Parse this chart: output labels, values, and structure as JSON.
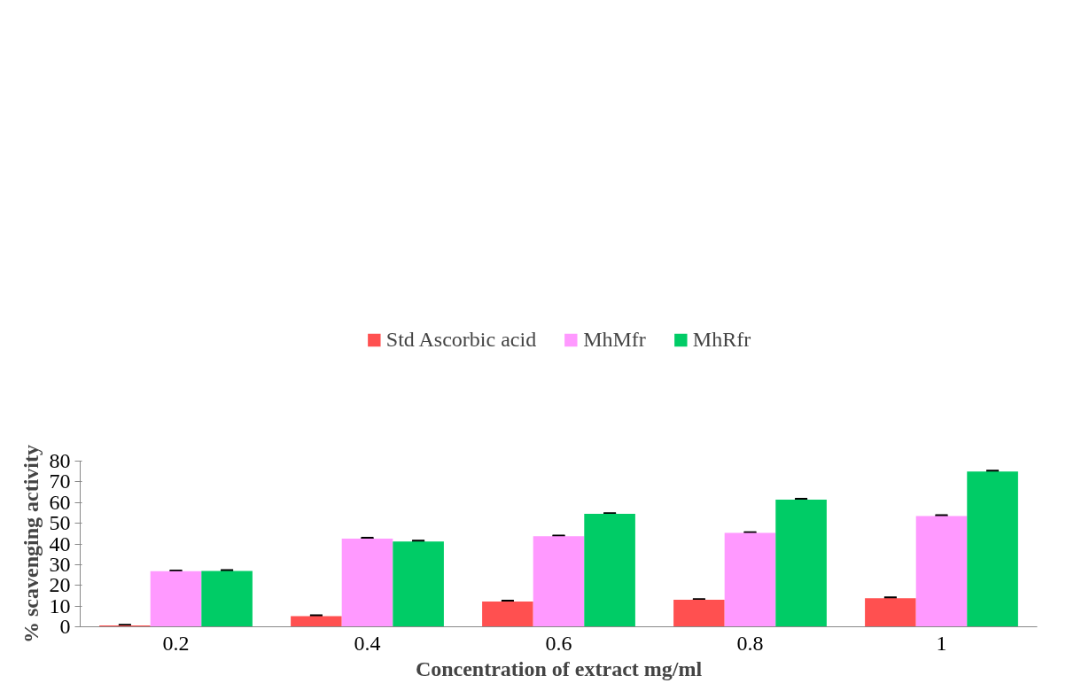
{
  "chart_data": {
    "type": "bar",
    "xlabel": "Concentration of extract mg/ml",
    "ylabel": "% scavenging activity",
    "categories": [
      "0.2",
      "0.4",
      "0.6",
      "0.8",
      "1"
    ],
    "series": [
      {
        "name": "Std Ascorbic acid",
        "color": "#ff5050",
        "values": [
          0.6,
          5.1,
          12.2,
          13.0,
          13.8
        ],
        "errors": [
          0.2,
          0.2,
          0.2,
          0.2,
          0.2
        ]
      },
      {
        "name": "MhMfr",
        "color": "#ff99ff",
        "values": [
          26.8,
          42.6,
          43.7,
          45.3,
          53.5
        ],
        "errors": [
          0.2,
          0.2,
          0.2,
          0.2,
          0.2
        ]
      },
      {
        "name": "MhRfr",
        "color": "#00cc66",
        "values": [
          27.0,
          41.2,
          54.5,
          61.4,
          75.0
        ],
        "errors": [
          0.2,
          0.2,
          0.2,
          0.2,
          0.2
        ]
      }
    ],
    "ylim": [
      0,
      80
    ],
    "yticks": [
      0,
      10,
      20,
      30,
      40,
      50,
      60,
      70,
      80
    ],
    "grid": false,
    "legend": "top"
  }
}
